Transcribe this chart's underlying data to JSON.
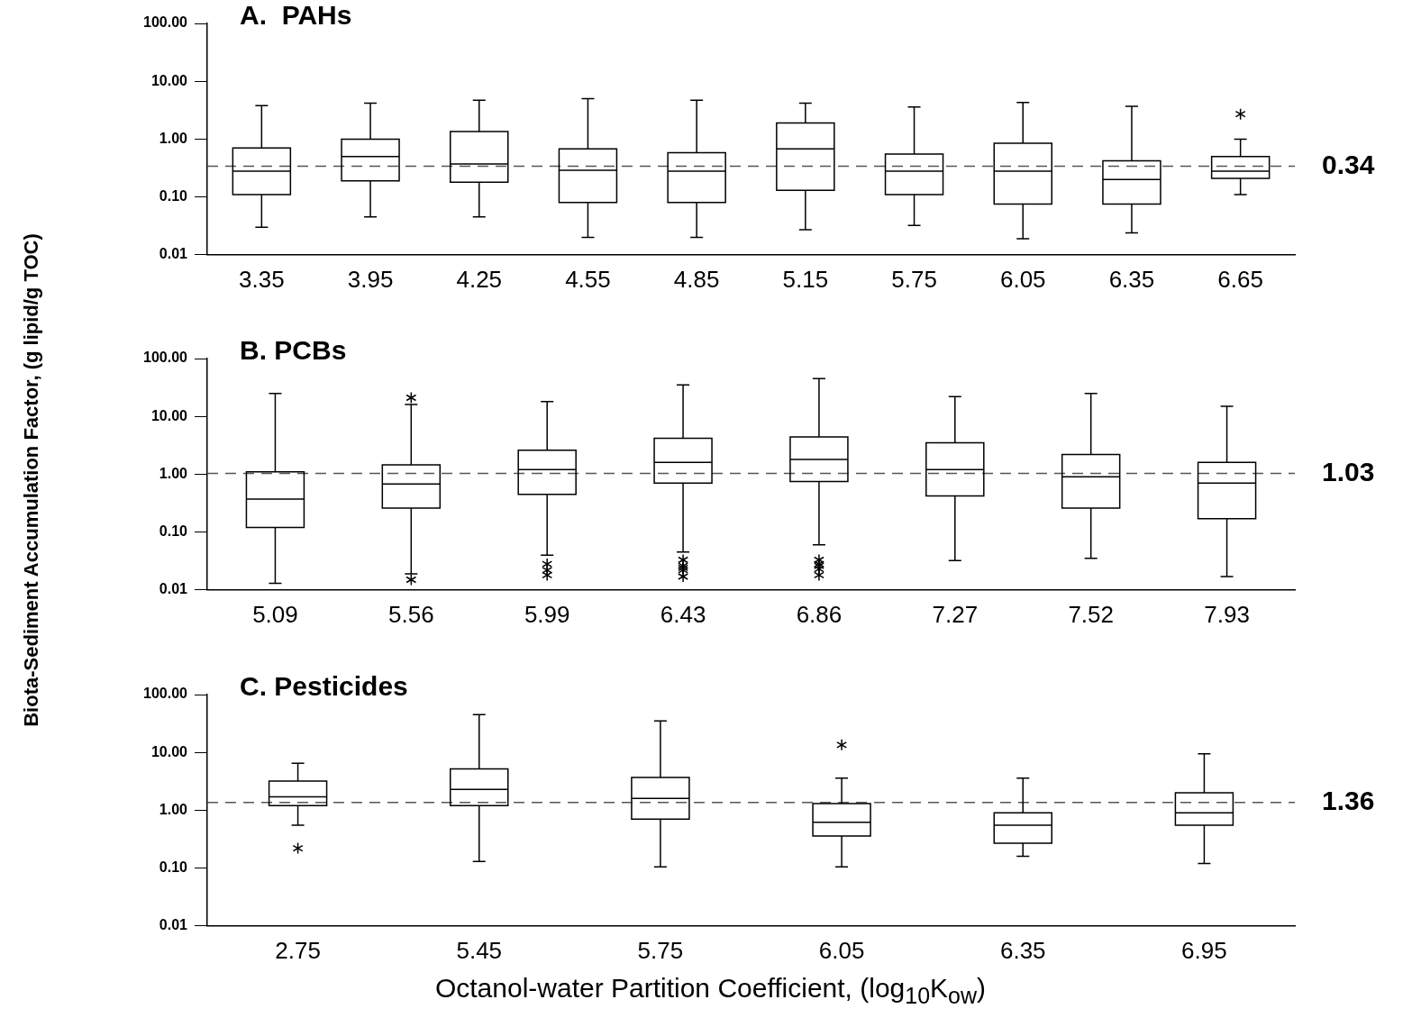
{
  "chart_data": [
    {
      "type": "box",
      "title": "A.  PAHs",
      "categories": [
        "3.35",
        "3.95",
        "4.25",
        "4.55",
        "4.85",
        "5.15",
        "5.75",
        "6.05",
        "6.35",
        "6.65"
      ],
      "boxes": [
        {
          "low": 0.03,
          "q1": 0.11,
          "median": 0.28,
          "q3": 0.7,
          "high": 3.8
        },
        {
          "low": 0.045,
          "q1": 0.19,
          "median": 0.5,
          "q3": 1.0,
          "high": 4.2
        },
        {
          "low": 0.045,
          "q1": 0.18,
          "median": 0.37,
          "q3": 1.35,
          "high": 4.7
        },
        {
          "low": 0.02,
          "q1": 0.08,
          "median": 0.29,
          "q3": 0.68,
          "high": 5.0
        },
        {
          "low": 0.02,
          "q1": 0.08,
          "median": 0.28,
          "q3": 0.58,
          "high": 4.7
        },
        {
          "low": 0.027,
          "q1": 0.13,
          "median": 0.68,
          "q3": 1.9,
          "high": 4.2
        },
        {
          "low": 0.032,
          "q1": 0.11,
          "median": 0.28,
          "q3": 0.55,
          "high": 3.6
        },
        {
          "low": 0.019,
          "q1": 0.075,
          "median": 0.28,
          "q3": 0.85,
          "high": 4.3
        },
        {
          "low": 0.024,
          "q1": 0.075,
          "median": 0.2,
          "q3": 0.42,
          "high": 3.7
        },
        {
          "low": 0.11,
          "q1": 0.21,
          "median": 0.28,
          "q3": 0.5,
          "high": 1.0,
          "outliers": [
            2.7
          ]
        }
      ],
      "ylim": [
        0.01,
        100
      ],
      "log": true,
      "yticks": [
        {
          "value": 0.01,
          "label": "0.01"
        },
        {
          "value": 0.1,
          "label": "0.10"
        },
        {
          "value": 1,
          "label": "1.00"
        },
        {
          "value": 10,
          "label": "10.00"
        },
        {
          "value": 100,
          "label": "100.00"
        }
      ],
      "ref_lines": [
        {
          "axis": "y",
          "value": 0.34,
          "label": "0.34",
          "line_style": "dashed"
        }
      ],
      "legend": false,
      "grid": false
    },
    {
      "type": "box",
      "title": "B. PCBs",
      "ylabel": "Biota-Sediment Accumulation Factor, (g lipid/g TOC)",
      "categories": [
        "5.09",
        "5.56",
        "5.99",
        "6.43",
        "6.86",
        "7.27",
        "7.52",
        "7.93"
      ],
      "boxes": [
        {
          "low": 0.013,
          "q1": 0.12,
          "median": 0.37,
          "q3": 1.1,
          "high": 25
        },
        {
          "low": 0.019,
          "q1": 0.26,
          "median": 0.68,
          "q3": 1.45,
          "high": 16,
          "outliers": [
            21,
            0.015
          ]
        },
        {
          "low": 0.04,
          "q1": 0.45,
          "median": 1.2,
          "q3": 2.6,
          "high": 18,
          "outliers": [
            0.028,
            0.022,
            0.018
          ]
        },
        {
          "low": 0.045,
          "q1": 0.7,
          "median": 1.6,
          "q3": 4.2,
          "high": 35,
          "outliers": [
            0.033,
            0.026,
            0.024,
            0.022,
            0.017
          ]
        },
        {
          "low": 0.06,
          "q1": 0.75,
          "median": 1.8,
          "q3": 4.4,
          "high": 45,
          "outliers": [
            0.033,
            0.028,
            0.026,
            0.023,
            0.018
          ]
        },
        {
          "low": 0.032,
          "q1": 0.42,
          "median": 1.2,
          "q3": 3.5,
          "high": 22
        },
        {
          "low": 0.035,
          "q1": 0.26,
          "median": 0.9,
          "q3": 2.2,
          "high": 25
        },
        {
          "low": 0.017,
          "q1": 0.17,
          "median": 0.7,
          "q3": 1.6,
          "high": 15
        }
      ],
      "ylim": [
        0.01,
        100
      ],
      "log": true,
      "yticks": [
        {
          "value": 0.01,
          "label": "0.01"
        },
        {
          "value": 0.1,
          "label": "0.10"
        },
        {
          "value": 1,
          "label": "1.00"
        },
        {
          "value": 10,
          "label": "10.00"
        },
        {
          "value": 100,
          "label": "100.00"
        }
      ],
      "ref_lines": [
        {
          "axis": "y",
          "value": 1.03,
          "label": "1.03",
          "line_style": "dashed"
        }
      ],
      "legend": false,
      "grid": false
    },
    {
      "type": "box",
      "title": "C. Pesticides",
      "xlabel": "Octanol-water Partition Coefficient, (log$_{10}$K$_{ow}$)",
      "categories": [
        "2.75",
        "5.45",
        "5.75",
        "6.05",
        "6.35",
        "6.95"
      ],
      "boxes": [
        {
          "low": 0.55,
          "q1": 1.2,
          "median": 1.7,
          "q3": 3.2,
          "high": 6.5,
          "outliers": [
            0.22
          ]
        },
        {
          "low": 0.13,
          "q1": 1.2,
          "median": 2.3,
          "q3": 5.2,
          "high": 45
        },
        {
          "low": 0.105,
          "q1": 0.7,
          "median": 1.6,
          "q3": 3.7,
          "high": 35
        },
        {
          "low": 0.105,
          "q1": 0.36,
          "median": 0.62,
          "q3": 1.3,
          "high": 3.6,
          "outliers": [
            13.5
          ]
        },
        {
          "low": 0.16,
          "q1": 0.27,
          "median": 0.55,
          "q3": 0.9,
          "high": 3.6
        },
        {
          "low": 0.12,
          "q1": 0.55,
          "median": 0.9,
          "q3": 2.0,
          "high": 9.5
        }
      ],
      "ylim": [
        0.01,
        100
      ],
      "log": true,
      "yticks": [
        {
          "value": 0.01,
          "label": "0.01"
        },
        {
          "value": 0.1,
          "label": "0.10"
        },
        {
          "value": 1,
          "label": "1.00"
        },
        {
          "value": 10,
          "label": "10.00"
        },
        {
          "value": 100,
          "label": "100.00"
        }
      ],
      "ref_lines": [
        {
          "axis": "y",
          "value": 1.36,
          "label": "1.36",
          "line_style": "dashed"
        }
      ],
      "legend": false,
      "grid": false
    }
  ]
}
